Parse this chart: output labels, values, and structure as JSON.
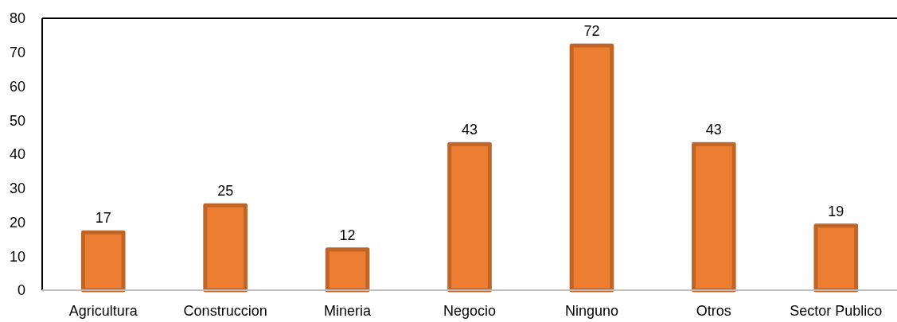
{
  "chart_data": {
    "type": "bar",
    "categories": [
      "Agricultura",
      "Construccion",
      "Mineria",
      "Negocio",
      "Ninguno",
      "Otros",
      "Sector Publico"
    ],
    "values": [
      17,
      25,
      12,
      43,
      72,
      43,
      19
    ],
    "color": "#ed7d31",
    "ylim": [
      0,
      80
    ],
    "yticks": [
      0,
      10,
      20,
      30,
      40,
      50,
      60,
      70,
      80
    ],
    "data_labels": true
  }
}
